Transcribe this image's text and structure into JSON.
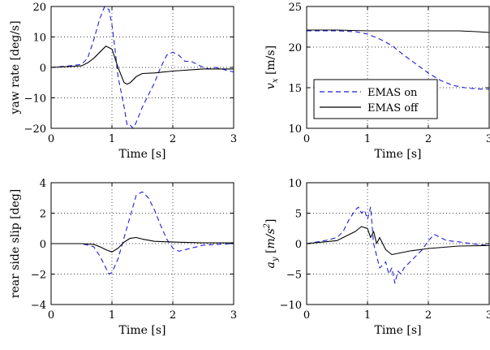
{
  "legend": {
    "entries": [
      {
        "label": "EMAS on",
        "style": "dashed",
        "color": "#1f1fd6"
      },
      {
        "label": "EMAS off",
        "style": "solid",
        "color": "#000000"
      }
    ],
    "placement": "lower-left of top-right panel"
  },
  "chart_data": [
    {
      "type": "line",
      "title": "",
      "xlabel": "Time [s]",
      "ylabel": "yaw rate [deg/s]",
      "xlim": [
        0,
        3
      ],
      "ylim": [
        -20,
        20
      ],
      "xticks": [
        "0",
        "1",
        "2",
        "3"
      ],
      "yticks": [
        "20",
        "10",
        "0",
        "−10",
        "−20"
      ],
      "grid": "dotted",
      "series": [
        {
          "name": "EMAS on",
          "color": "#1f1fd6",
          "dash": true,
          "x": [
            0,
            0.3,
            0.5,
            0.6,
            0.7,
            0.8,
            0.88,
            0.95,
            1.0,
            1.05,
            1.1,
            1.2,
            1.25,
            1.3,
            1.35,
            1.4,
            1.5,
            1.6,
            1.7,
            1.8,
            1.9,
            2.0,
            2.1,
            2.2,
            2.3,
            2.4,
            2.5,
            2.6,
            2.7,
            2.8,
            2.9,
            3.0
          ],
          "y": [
            0,
            0.5,
            1,
            3,
            9,
            16,
            20,
            19,
            14,
            6,
            -3,
            -13,
            -19,
            -19,
            -20,
            -18,
            -13,
            -9,
            -5,
            0,
            4,
            5,
            4,
            2,
            2,
            1,
            0,
            -0.5,
            0,
            -0.5,
            -1,
            -1.5
          ]
        },
        {
          "name": "EMAS off",
          "color": "#000000",
          "dash": false,
          "x": [
            0,
            0.3,
            0.5,
            0.6,
            0.7,
            0.8,
            0.9,
            1.0,
            1.05,
            1.1,
            1.2,
            1.25,
            1.3,
            1.4,
            1.5,
            1.7,
            2.0,
            2.5,
            3.0
          ],
          "y": [
            0,
            0.3,
            0.5,
            1.5,
            3,
            5,
            7,
            6,
            3,
            0,
            -5,
            -5.5,
            -5,
            -3,
            -2,
            -1.8,
            -1.2,
            -0.5,
            -0.5
          ]
        }
      ]
    },
    {
      "type": "line",
      "title": "",
      "xlabel": "Time [s]",
      "ylabel": "v_x [m/s]",
      "xlim": [
        0,
        3
      ],
      "ylim": [
        10,
        25
      ],
      "xticks": [
        "0",
        "1",
        "2",
        "3"
      ],
      "yticks": [
        "25",
        "20",
        "15",
        "10"
      ],
      "grid": "dotted",
      "series": [
        {
          "name": "EMAS on",
          "color": "#1f1fd6",
          "dash": true,
          "x": [
            0,
            0.5,
            0.8,
            1.0,
            1.2,
            1.4,
            1.6,
            1.8,
            2.0,
            2.2,
            2.4,
            2.6,
            2.8,
            3.0
          ],
          "y": [
            22,
            22,
            21.9,
            21.6,
            21,
            20.2,
            19,
            17.9,
            16.8,
            15.9,
            15.3,
            15,
            14.85,
            14.8
          ]
        },
        {
          "name": "EMAS off",
          "color": "#000000",
          "dash": false,
          "x": [
            0,
            0.5,
            1.0,
            1.5,
            2.0,
            2.5,
            2.8,
            3.0
          ],
          "y": [
            22.1,
            22.1,
            22,
            22,
            22,
            22,
            21.9,
            21.8
          ]
        }
      ]
    },
    {
      "type": "line",
      "title": "",
      "xlabel": "Time [s]",
      "ylabel": "rear side slip [deg]",
      "xlim": [
        0,
        3
      ],
      "ylim": [
        -4,
        4
      ],
      "xticks": [
        "0",
        "1",
        "2",
        "3"
      ],
      "yticks": [
        "4",
        "2",
        "0",
        "−2",
        "−4"
      ],
      "grid": "dotted",
      "series": [
        {
          "name": "EMAS on",
          "color": "#1f1fd6",
          "dash": true,
          "x": [
            0,
            0.5,
            0.7,
            0.8,
            0.9,
            0.95,
            1.0,
            1.1,
            1.2,
            1.3,
            1.4,
            1.5,
            1.6,
            1.7,
            1.8,
            1.9,
            2.0,
            2.1,
            2.3,
            2.5,
            3.0
          ],
          "y": [
            0,
            0,
            -0.2,
            -0.8,
            -1.6,
            -2,
            -1.9,
            -1,
            0.4,
            1.8,
            3.2,
            3.4,
            3.0,
            2.2,
            1.2,
            0.3,
            -0.3,
            -0.5,
            -0.3,
            -0.1,
            0
          ]
        },
        {
          "name": "EMAS off",
          "color": "#000000",
          "dash": false,
          "x": [
            0,
            0.5,
            0.7,
            0.8,
            0.9,
            1.0,
            1.1,
            1.2,
            1.3,
            1.4,
            1.5,
            1.7,
            2.0,
            2.5,
            3.0
          ],
          "y": [
            0,
            0,
            -0.05,
            -0.2,
            -0.4,
            -0.55,
            -0.3,
            0.1,
            0.35,
            0.4,
            0.3,
            0.15,
            0.1,
            0.05,
            0.05
          ]
        }
      ]
    },
    {
      "type": "line",
      "title": "",
      "xlabel": "Time [s]",
      "ylabel": "a_y [m/s^2]",
      "xlim": [
        0,
        3
      ],
      "ylim": [
        -10,
        10
      ],
      "xticks": [
        "0",
        "1",
        "2",
        "3"
      ],
      "yticks": [
        "10",
        "5",
        "0",
        "−5",
        "−10"
      ],
      "grid": "dotted",
      "series": [
        {
          "name": "EMAS on",
          "color": "#1f1fd6",
          "dash": true,
          "x": [
            0,
            0.3,
            0.5,
            0.6,
            0.7,
            0.8,
            0.85,
            0.9,
            0.95,
            1.0,
            1.05,
            1.1,
            1.15,
            1.2,
            1.3,
            1.35,
            1.4,
            1.45,
            1.5,
            1.55,
            1.6,
            1.7,
            1.8,
            1.9,
            2.0,
            2.1,
            2.2,
            2.3,
            2.5,
            2.7,
            3.0
          ],
          "y": [
            0,
            0.5,
            1,
            2,
            4,
            5.5,
            6,
            5,
            5.5,
            4,
            6,
            0,
            -2,
            -4,
            -3,
            -5,
            -4,
            -6.5,
            -4.5,
            -5,
            -4,
            -3,
            -2,
            -1,
            0.5,
            1.5,
            1,
            0.5,
            0.3,
            0,
            -0.3
          ]
        },
        {
          "name": "EMAS off",
          "color": "#000000",
          "dash": false,
          "x": [
            0,
            0.3,
            0.5,
            0.6,
            0.7,
            0.8,
            0.9,
            1.0,
            1.05,
            1.1,
            1.15,
            1.2,
            1.3,
            1.4,
            1.5,
            1.7,
            2.0,
            2.5,
            3.0
          ],
          "y": [
            0,
            0.3,
            0.5,
            1,
            1.5,
            2,
            2.8,
            2.5,
            1,
            2,
            0,
            1,
            -1,
            -1.8,
            -1.6,
            -1.2,
            -0.8,
            -0.4,
            -0.3
          ]
        }
      ]
    }
  ]
}
